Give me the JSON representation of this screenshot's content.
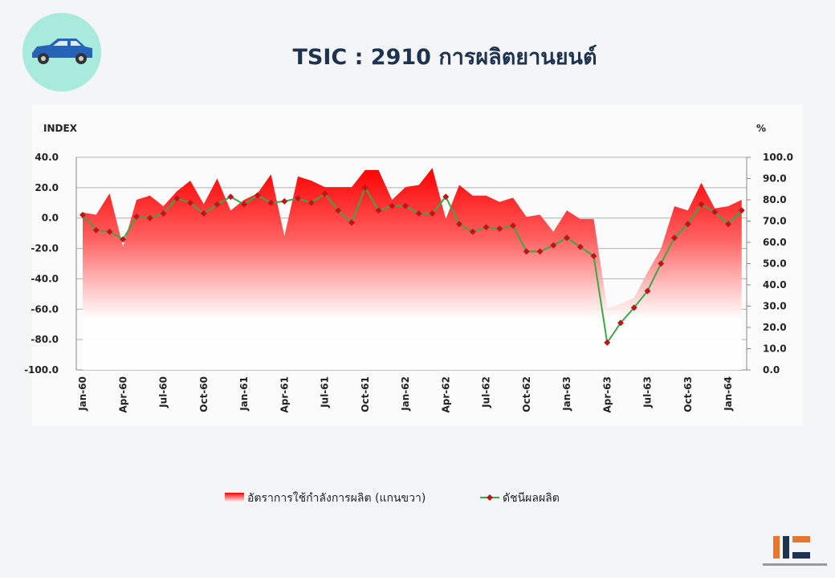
{
  "chart_data": {
    "type": "line",
    "title": "TSIC : 2910 การผลิตยานยนต์",
    "y_label": "INDEX",
    "y2_label": "%",
    "categories": [
      "Jan-60",
      null,
      null,
      "Apr-60",
      null,
      null,
      "Jul-60",
      null,
      null,
      "Oct-60",
      null,
      null,
      "Jan-61",
      null,
      null,
      "Apr-61",
      null,
      null,
      "Jul-61",
      null,
      null,
      "Oct-61",
      null,
      null,
      "Jan-62",
      null,
      null,
      "Apr-62",
      null,
      null,
      "Jul-62",
      null,
      null,
      "Oct-62",
      null,
      null,
      "Jan-63",
      null,
      null,
      "Apr-63",
      null,
      null,
      "Jul-63",
      null,
      null,
      "Oct-63",
      null,
      null,
      "Jan-64",
      null
    ],
    "series": [
      {
        "name": "อัตราการใช้กำลังการผลิต (แกนขวา)",
        "type": "area",
        "axis": "y2",
        "color": "#ff0000",
        "values": [
          74,
          73,
          83,
          58,
          80,
          82,
          77,
          84,
          89,
          78,
          90,
          75,
          80,
          83,
          92,
          63,
          91,
          89,
          86,
          86,
          86,
          94,
          94,
          80,
          86,
          87,
          95,
          71,
          87,
          82,
          82,
          79,
          81,
          72,
          73,
          65,
          75,
          71,
          71,
          29,
          31,
          34,
          46,
          57,
          77,
          75,
          88,
          76,
          77,
          80
        ]
      },
      {
        "name": "ดัชนีผลผลิต",
        "type": "line",
        "color": "#3aa843",
        "marker_color": "#c0141b",
        "values": [
          2,
          -8,
          -9,
          -14,
          1,
          0,
          3,
          13,
          10,
          3,
          9,
          14,
          9,
          15,
          10,
          11,
          13,
          10,
          16,
          5,
          -3,
          20,
          5,
          8,
          8,
          3,
          3,
          14,
          -4,
          -9,
          -6,
          -7,
          -5,
          -22,
          -22,
          -18,
          -13,
          -19,
          -25,
          -82,
          -69,
          -59,
          -48,
          -30,
          -13,
          -4,
          9,
          4,
          -4,
          5
        ]
      }
    ],
    "ylim": [
      -100,
      40
    ],
    "yticks": [
      {
        "value": -100,
        "label": "-100.0"
      },
      {
        "value": -80,
        "label": "-80.0"
      },
      {
        "value": -60,
        "label": "-60.0"
      },
      {
        "value": -40,
        "label": "-40.0"
      },
      {
        "value": -20,
        "label": "-20.0"
      },
      {
        "value": 0,
        "label": "0.0"
      },
      {
        "value": 20,
        "label": "20.0"
      },
      {
        "value": 40,
        "label": "40.0"
      }
    ],
    "y2lim": [
      0,
      100
    ],
    "y2ticks": [
      {
        "value": 0,
        "label": "0.0"
      },
      {
        "value": 10,
        "label": "10.0"
      },
      {
        "value": 20,
        "label": "20.0"
      },
      {
        "value": 30,
        "label": "30.0"
      },
      {
        "value": 40,
        "label": "40.0"
      },
      {
        "value": 50,
        "label": "50.0"
      },
      {
        "value": 60,
        "label": "60.0"
      },
      {
        "value": 70,
        "label": "70.0"
      },
      {
        "value": 80,
        "label": "80.0"
      },
      {
        "value": 90,
        "label": "90.0"
      },
      {
        "value": 100,
        "label": "100.0"
      }
    ],
    "grid": true,
    "legend": "bottom"
  }
}
